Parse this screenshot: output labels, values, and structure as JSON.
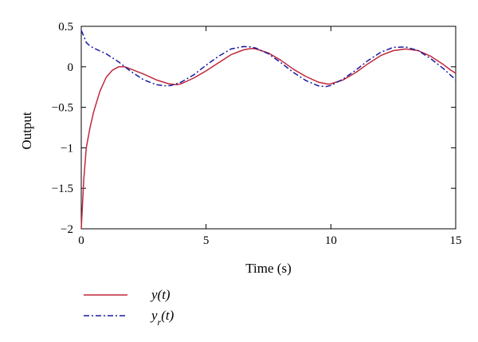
{
  "chart_data": {
    "type": "line",
    "title": "",
    "xlabel": "Time (s)",
    "ylabel": "Output",
    "xlim": [
      0,
      15
    ],
    "ylim": [
      -2,
      0.5
    ],
    "xticks": [
      0,
      5,
      10,
      15
    ],
    "xtick_labels": [
      "0",
      "5",
      "10",
      "15"
    ],
    "yticks": [
      0.5,
      0,
      -0.5,
      -1,
      -1.5,
      -2
    ],
    "ytick_labels": [
      "0.5",
      "0",
      "−0.5",
      "−1",
      "−1.5",
      "−2"
    ],
    "grid": false,
    "legend_position": "bottom-left",
    "series": [
      {
        "name": "y(t)",
        "legend_html": "y(t)",
        "color": "#c0283c",
        "style": "solid",
        "x": [
          0,
          0.1,
          0.2,
          0.35,
          0.5,
          0.75,
          1.0,
          1.25,
          1.5,
          1.75,
          2.0,
          2.5,
          3.0,
          3.5,
          3.8,
          4.0,
          4.5,
          5.0,
          5.5,
          6.0,
          6.5,
          6.8,
          7.0,
          7.5,
          8.0,
          8.5,
          9.0,
          9.5,
          9.9,
          10.0,
          10.5,
          11.0,
          11.5,
          12.0,
          12.5,
          13.0,
          13.5,
          14.0,
          14.5,
          14.8,
          15.0
        ],
        "y": [
          -2.0,
          -1.4,
          -1.0,
          -0.75,
          -0.55,
          -0.3,
          -0.13,
          -0.04,
          0.0,
          0.0,
          -0.03,
          -0.09,
          -0.16,
          -0.21,
          -0.22,
          -0.21,
          -0.14,
          -0.05,
          0.05,
          0.15,
          0.21,
          0.225,
          0.22,
          0.17,
          0.08,
          -0.03,
          -0.12,
          -0.19,
          -0.215,
          -0.21,
          -0.16,
          -0.07,
          0.04,
          0.14,
          0.2,
          0.22,
          0.2,
          0.13,
          0.03,
          -0.04,
          -0.08
        ]
      },
      {
        "name": "y_r(t)",
        "legend_html": "y<tspan baseline-shift=\"sub\" font-size=\"12\">r</tspan>(t)",
        "color": "#1a1aa0",
        "style": "dashdot",
        "x": [
          0,
          0.1,
          0.2,
          0.3,
          0.5,
          1.0,
          1.5,
          2.0,
          2.5,
          3.0,
          3.4,
          3.6,
          4.0,
          4.5,
          5.0,
          5.5,
          6.0,
          6.5,
          6.8,
          7.0,
          7.5,
          8.0,
          8.5,
          9.0,
          9.5,
          9.8,
          10.0,
          10.5,
          11.0,
          11.5,
          12.0,
          12.5,
          13.0,
          13.5,
          14.0,
          14.5,
          15.0
        ],
        "y": [
          0.45,
          0.38,
          0.3,
          0.27,
          0.23,
          0.16,
          0.06,
          -0.06,
          -0.16,
          -0.22,
          -0.235,
          -0.23,
          -0.19,
          -0.1,
          0.02,
          0.13,
          0.22,
          0.25,
          0.245,
          0.23,
          0.16,
          0.05,
          -0.07,
          -0.17,
          -0.235,
          -0.245,
          -0.23,
          -0.15,
          -0.04,
          0.08,
          0.18,
          0.24,
          0.245,
          0.2,
          0.1,
          -0.02,
          -0.16
        ]
      }
    ]
  }
}
